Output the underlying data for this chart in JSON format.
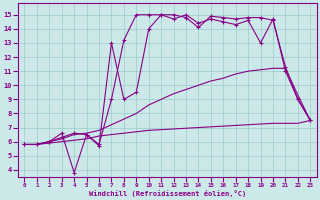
{
  "bg_color": "#cce8e8",
  "line_color": "#880088",
  "grid_color": "#99cccc",
  "xlabel": "Windchill (Refroidissement éolien,°C)",
  "xlim": [
    -0.5,
    23.5
  ],
  "ylim": [
    3.5,
    15.8
  ],
  "yticks": [
    4,
    5,
    6,
    7,
    8,
    9,
    10,
    11,
    12,
    13,
    14,
    15
  ],
  "xticks": [
    0,
    1,
    2,
    3,
    4,
    5,
    6,
    7,
    8,
    9,
    10,
    11,
    12,
    13,
    14,
    15,
    16,
    17,
    18,
    19,
    20,
    21,
    22,
    23
  ],
  "series": [
    {
      "x": [
        0,
        1,
        2,
        3,
        4,
        5,
        6,
        7,
        8,
        9,
        10,
        11,
        12,
        13,
        14,
        15,
        16,
        17,
        18,
        19,
        20,
        21,
        22,
        23
      ],
      "y": [
        5.8,
        5.8,
        5.9,
        6.0,
        6.1,
        6.2,
        6.4,
        6.5,
        6.6,
        6.7,
        6.8,
        6.85,
        6.9,
        6.95,
        7.0,
        7.05,
        7.1,
        7.15,
        7.2,
        7.25,
        7.3,
        7.3,
        7.3,
        7.5
      ],
      "marker": null,
      "lw": 0.8
    },
    {
      "x": [
        0,
        1,
        2,
        3,
        4,
        5,
        6,
        7,
        8,
        9,
        10,
        11,
        12,
        13,
        14,
        15,
        16,
        17,
        18,
        19,
        20,
        21,
        22,
        23
      ],
      "y": [
        5.8,
        5.8,
        6.0,
        6.2,
        6.5,
        6.6,
        6.8,
        7.2,
        7.6,
        8.0,
        8.6,
        9.0,
        9.4,
        9.7,
        10.0,
        10.3,
        10.5,
        10.8,
        11.0,
        11.1,
        11.2,
        11.2,
        9.3,
        7.5
      ],
      "marker": null,
      "lw": 0.8
    },
    {
      "x": [
        0,
        1,
        2,
        3,
        4,
        5,
        6,
        7,
        8,
        9,
        10,
        11,
        12,
        13,
        14,
        15,
        16,
        17,
        18,
        19,
        20,
        21,
        22,
        23
      ],
      "y": [
        5.8,
        5.8,
        6.0,
        6.3,
        6.6,
        6.5,
        5.8,
        9.0,
        13.2,
        15.0,
        15.0,
        15.0,
        14.7,
        15.0,
        14.4,
        14.7,
        14.5,
        14.3,
        14.6,
        13.0,
        14.7,
        11.0,
        9.0,
        7.5
      ],
      "marker": "+",
      "lw": 0.8
    },
    {
      "x": [
        0,
        1,
        2,
        3,
        4,
        5,
        6,
        7,
        8,
        9,
        10,
        11,
        12,
        13,
        14,
        15,
        16,
        17,
        18,
        19,
        20,
        21,
        22,
        23
      ],
      "y": [
        5.8,
        5.8,
        6.0,
        6.6,
        3.8,
        6.5,
        5.7,
        13.0,
        9.0,
        9.5,
        14.0,
        15.0,
        15.0,
        14.8,
        14.1,
        14.9,
        14.8,
        14.7,
        14.8,
        14.8,
        14.6,
        11.3,
        9.0,
        7.5
      ],
      "marker": "+",
      "lw": 0.8
    }
  ]
}
